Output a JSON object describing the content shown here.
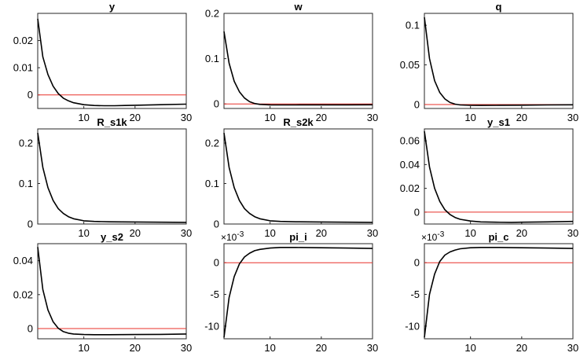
{
  "chart_data": [
    {
      "type": "line",
      "title": "y",
      "xlim": [
        1,
        30
      ],
      "ylim": [
        -0.005,
        0.03
      ],
      "xticks": [
        10,
        20,
        30
      ],
      "xtick_labels": [
        "10",
        "20",
        "30"
      ],
      "yticks": [
        0,
        0.01,
        0.02
      ],
      "ytick_labels": [
        "0",
        "0.01",
        "0.02"
      ],
      "multiplier": "",
      "zero_line": true,
      "zero_line_color": "#e8312a",
      "line_color": "#000000",
      "series": [
        {
          "x": [
            1,
            2,
            3,
            4,
            5,
            6,
            7,
            8,
            10,
            12,
            14,
            16,
            18,
            20,
            25,
            30
          ],
          "y": [
            0.028,
            0.014,
            0.0075,
            0.0032,
            0.0005,
            -0.0012,
            -0.0022,
            -0.0029,
            -0.0036,
            -0.0039,
            -0.004,
            -0.004,
            -0.0039,
            -0.0038,
            -0.0036,
            -0.0034
          ]
        }
      ]
    },
    {
      "type": "line",
      "title": "w",
      "xlim": [
        1,
        30
      ],
      "ylim": [
        -0.01,
        0.2
      ],
      "xticks": [
        10,
        20,
        30
      ],
      "xtick_labels": [
        "10",
        "20",
        "30"
      ],
      "yticks": [
        0,
        0.1,
        0.2
      ],
      "ytick_labels": [
        "0",
        "0.1",
        "0.2"
      ],
      "multiplier": "",
      "zero_line": true,
      "zero_line_color": "#e8312a",
      "line_color": "#000000",
      "series": [
        {
          "x": [
            1,
            2,
            3,
            4,
            5,
            6,
            7,
            8,
            10,
            12,
            15,
            20,
            25,
            30
          ],
          "y": [
            0.16,
            0.09,
            0.05,
            0.027,
            0.013,
            0.005,
            0.001,
            -0.001,
            -0.002,
            -0.0022,
            -0.0022,
            -0.0021,
            -0.002,
            -0.0018
          ]
        }
      ]
    },
    {
      "type": "line",
      "title": "q",
      "xlim": [
        1,
        30
      ],
      "ylim": [
        -0.005,
        0.115
      ],
      "xticks": [
        10,
        20,
        30
      ],
      "xtick_labels": [
        "10",
        "20",
        "30"
      ],
      "yticks": [
        0,
        0.05,
        0.1
      ],
      "ytick_labels": [
        "0",
        "0.05",
        "0.1"
      ],
      "multiplier": "",
      "zero_line": true,
      "zero_line_color": "#e8312a",
      "line_color": "#000000",
      "series": [
        {
          "x": [
            1,
            2,
            3,
            4,
            5,
            6,
            7,
            8,
            10,
            12,
            15,
            20,
            25,
            30
          ],
          "y": [
            0.11,
            0.058,
            0.03,
            0.015,
            0.007,
            0.0025,
            0.0005,
            -0.0005,
            -0.001,
            -0.0011,
            -0.001,
            -0.0008,
            -0.0005,
            -0.0003
          ]
        }
      ]
    },
    {
      "type": "line",
      "title": "R_s1k",
      "xlim": [
        1,
        30
      ],
      "ylim": [
        0,
        0.235
      ],
      "xticks": [
        10,
        20,
        30
      ],
      "xtick_labels": [
        "10",
        "20",
        "30"
      ],
      "yticks": [
        0,
        0.1,
        0.2
      ],
      "ytick_labels": [
        "0",
        "0.1",
        "0.2"
      ],
      "multiplier": "",
      "zero_line": false,
      "zero_line_color": "#e8312a",
      "line_color": "#000000",
      "series": [
        {
          "x": [
            1,
            2,
            3,
            4,
            5,
            6,
            7,
            8,
            10,
            12,
            15,
            20,
            25,
            30
          ],
          "y": [
            0.225,
            0.14,
            0.09,
            0.058,
            0.038,
            0.026,
            0.018,
            0.013,
            0.008,
            0.0065,
            0.0055,
            0.005,
            0.0045,
            0.004
          ]
        }
      ]
    },
    {
      "type": "line",
      "title": "R_s2k",
      "xlim": [
        1,
        30
      ],
      "ylim": [
        0,
        0.235
      ],
      "xticks": [
        10,
        20,
        30
      ],
      "xtick_labels": [
        "10",
        "20",
        "30"
      ],
      "yticks": [
        0,
        0.1,
        0.2
      ],
      "ytick_labels": [
        "0",
        "0.1",
        "0.2"
      ],
      "multiplier": "",
      "zero_line": false,
      "zero_line_color": "#e8312a",
      "line_color": "#000000",
      "series": [
        {
          "x": [
            1,
            2,
            3,
            4,
            5,
            6,
            7,
            8,
            10,
            12,
            15,
            20,
            25,
            30
          ],
          "y": [
            0.225,
            0.14,
            0.09,
            0.058,
            0.038,
            0.026,
            0.018,
            0.013,
            0.008,
            0.0065,
            0.0055,
            0.005,
            0.0045,
            0.004
          ]
        }
      ]
    },
    {
      "type": "line",
      "title": "y_s1",
      "xlim": [
        1,
        30
      ],
      "ylim": [
        -0.01,
        0.07
      ],
      "xticks": [
        10,
        20,
        30
      ],
      "xtick_labels": [
        "10",
        "20",
        "30"
      ],
      "yticks": [
        0,
        0.02,
        0.04,
        0.06
      ],
      "ytick_labels": [
        "0",
        "0.02",
        "0.04",
        "0.06"
      ],
      "multiplier": "",
      "zero_line": true,
      "zero_line_color": "#e8312a",
      "line_color": "#000000",
      "series": [
        {
          "x": [
            1,
            2,
            3,
            4,
            5,
            6,
            7,
            8,
            10,
            12,
            15,
            18,
            20,
            25,
            30
          ],
          "y": [
            0.068,
            0.038,
            0.02,
            0.009,
            0.002,
            -0.002,
            -0.0045,
            -0.006,
            -0.0075,
            -0.0082,
            -0.0085,
            -0.0086,
            -0.0085,
            -0.0082,
            -0.0078
          ]
        }
      ]
    },
    {
      "type": "line",
      "title": "y_s2",
      "xlim": [
        1,
        30
      ],
      "ylim": [
        -0.006,
        0.05
      ],
      "xticks": [
        10,
        20,
        30
      ],
      "xtick_labels": [
        "10",
        "20",
        "30"
      ],
      "yticks": [
        0,
        0.02,
        0.04
      ],
      "ytick_labels": [
        "0",
        "0.02",
        "0.04"
      ],
      "multiplier": "",
      "zero_line": true,
      "zero_line_color": "#e8312a",
      "line_color": "#000000",
      "series": [
        {
          "x": [
            1,
            2,
            3,
            4,
            5,
            6,
            7,
            8,
            10,
            12,
            15,
            20,
            25,
            30
          ],
          "y": [
            0.048,
            0.023,
            0.011,
            0.004,
            0.0002,
            -0.0018,
            -0.0027,
            -0.0032,
            -0.0035,
            -0.0036,
            -0.0036,
            -0.0035,
            -0.0034,
            -0.0032
          ]
        }
      ]
    },
    {
      "type": "line",
      "title": "pi_i",
      "xlim": [
        1,
        30
      ],
      "ylim": [
        -12,
        3
      ],
      "xticks": [
        10,
        20,
        30
      ],
      "xtick_labels": [
        "10",
        "20",
        "30"
      ],
      "yticks": [
        -10,
        -5,
        0
      ],
      "ytick_labels": [
        "-10",
        "-5",
        "0"
      ],
      "multiplier": "×10",
      "multiplier_exp": "-3",
      "zero_line": true,
      "zero_line_color": "#e8312a",
      "line_color": "#000000",
      "series": [
        {
          "x": [
            1,
            2,
            3,
            4,
            5,
            6,
            7,
            8,
            10,
            12,
            15,
            20,
            25,
            30
          ],
          "y": [
            -11.8,
            -5.5,
            -2.2,
            -0.2,
            0.9,
            1.5,
            1.9,
            2.1,
            2.3,
            2.4,
            2.4,
            2.35,
            2.3,
            2.25
          ]
        }
      ]
    },
    {
      "type": "line",
      "title": "pi_c",
      "xlim": [
        1,
        30
      ],
      "ylim": [
        -12,
        3
      ],
      "xticks": [
        10,
        20,
        30
      ],
      "xtick_labels": [
        "10",
        "20",
        "30"
      ],
      "yticks": [
        -10,
        -5,
        0
      ],
      "ytick_labels": [
        "-10",
        "-5",
        "0"
      ],
      "multiplier": "×10",
      "multiplier_exp": "-3",
      "zero_line": true,
      "zero_line_color": "#e8312a",
      "line_color": "#000000",
      "series": [
        {
          "x": [
            1,
            2,
            3,
            4,
            5,
            6,
            7,
            8,
            10,
            12,
            15,
            20,
            25,
            30
          ],
          "y": [
            -11.8,
            -5.0,
            -1.8,
            0.2,
            1.2,
            1.7,
            2.0,
            2.2,
            2.35,
            2.4,
            2.4,
            2.35,
            2.3,
            2.25
          ]
        }
      ]
    }
  ]
}
